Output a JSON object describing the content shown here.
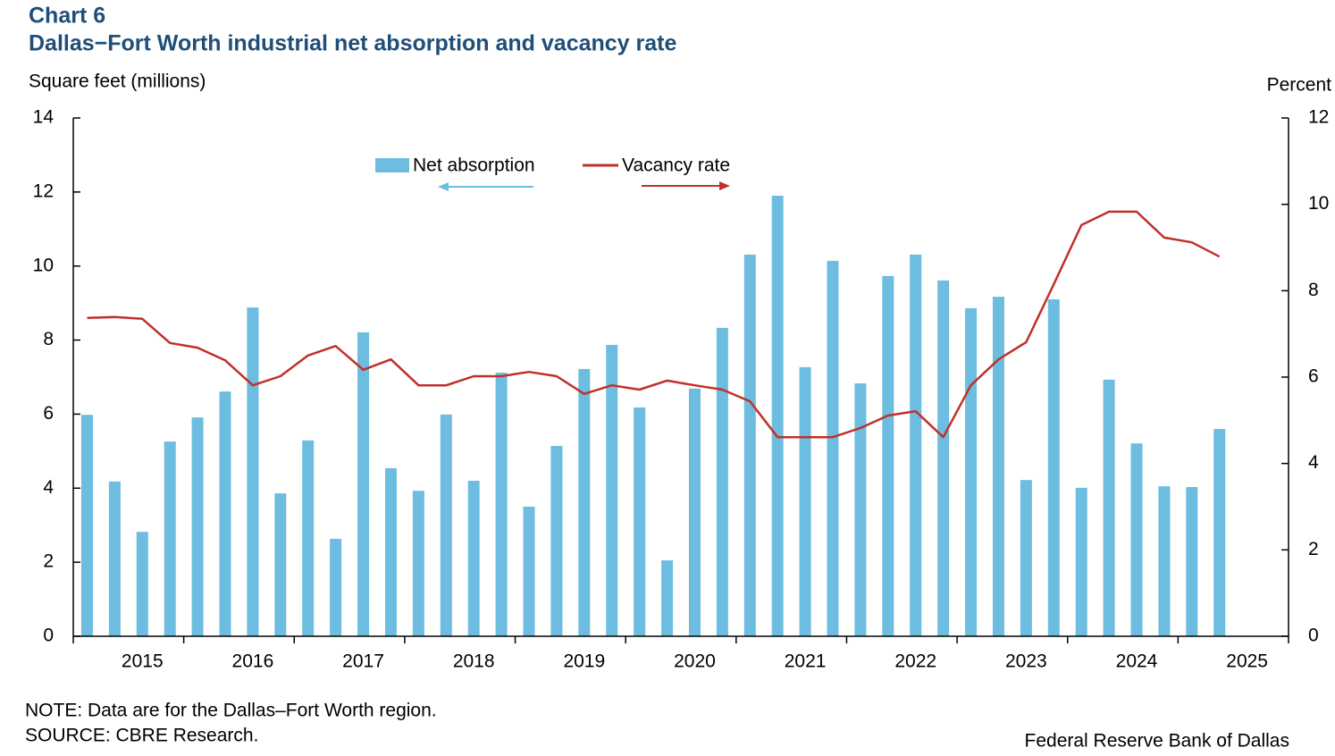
{
  "chart_data": {
    "type": "bar_line",
    "chart_label": "Chart 6",
    "title": "Dallas−Fort Worth industrial net absorption and vacancy rate",
    "y_label": "Square feet (millions)",
    "y2_label": "Percent",
    "categories": [
      null,
      null,
      "2015",
      null,
      null,
      null,
      "2016",
      null,
      null,
      null,
      "2017",
      null,
      null,
      null,
      "2018",
      null,
      null,
      null,
      "2019",
      null,
      null,
      null,
      "2020",
      null,
      null,
      null,
      "2021",
      null,
      null,
      null,
      "2022",
      null,
      null,
      null,
      "2023",
      null,
      null,
      null,
      "2024",
      null,
      null,
      null,
      "2025",
      null
    ],
    "series": [
      {
        "name": "Net absorption",
        "type": "bar",
        "color": "#6cbde0",
        "values": [
          5.98,
          4.18,
          2.82,
          5.26,
          5.91,
          6.61,
          8.88,
          3.86,
          5.29,
          2.63,
          8.21,
          4.54,
          3.93,
          5.99,
          4.2,
          7.12,
          3.5,
          5.14,
          7.22,
          7.87,
          6.18,
          2.05,
          6.69,
          8.33,
          10.31,
          11.9,
          7.27,
          10.14,
          6.83,
          9.73,
          10.31,
          9.61,
          8.86,
          9.17,
          4.22,
          9.1,
          4.01,
          6.93,
          5.21,
          4.05,
          4.03,
          5.6,
          null,
          null
        ]
      },
      {
        "name": "Vacancy rate",
        "type": "line",
        "axis": "y2",
        "color": "#c0302a",
        "values": [
          7.37,
          7.39,
          7.35,
          6.79,
          6.68,
          6.39,
          5.81,
          6.02,
          6.5,
          6.72,
          6.17,
          6.41,
          5.81,
          5.81,
          6.02,
          6.02,
          6.12,
          6.02,
          5.61,
          5.81,
          5.71,
          5.92,
          5.81,
          5.71,
          5.44,
          4.61,
          4.61,
          4.61,
          4.82,
          5.11,
          5.21,
          4.61,
          5.81,
          6.41,
          6.81,
          8.15,
          9.52,
          9.83,
          9.83,
          9.23,
          9.12,
          8.79,
          null,
          null
        ]
      }
    ],
    "ylim": [
      0,
      14
    ],
    "yticks": [
      0,
      2,
      4,
      6,
      8,
      10,
      12,
      14
    ],
    "y2lim": [
      0,
      12
    ],
    "y2ticks": [
      0,
      2,
      4,
      6,
      8,
      10,
      12
    ],
    "note": "NOTE: Data are for the Dallas–Fort Worth region.",
    "source": "SOURCE: CBRE Research.",
    "credit": "Federal Reserve Bank of Dallas"
  }
}
